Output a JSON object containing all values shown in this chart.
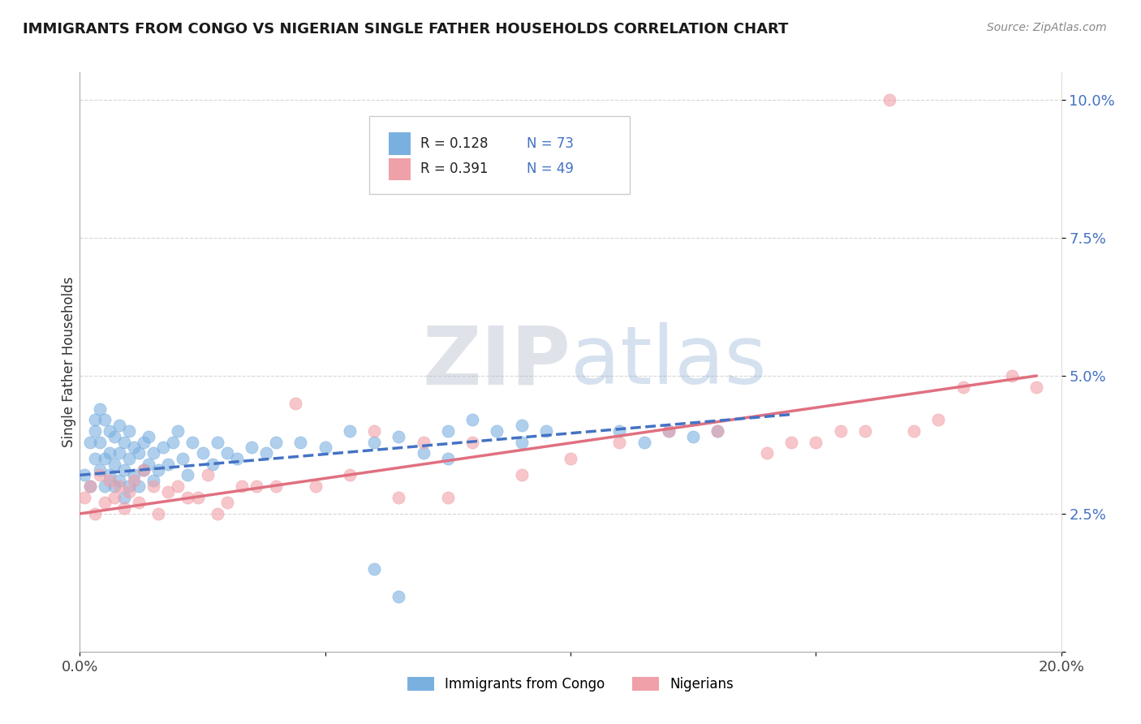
{
  "title": "IMMIGRANTS FROM CONGO VS NIGERIAN SINGLE FATHER HOUSEHOLDS CORRELATION CHART",
  "source": "Source: ZipAtlas.com",
  "ylabel": "Single Father Households",
  "xlim": [
    0.0,
    0.2
  ],
  "ylim": [
    0.0,
    0.105
  ],
  "xticks": [
    0.0,
    0.05,
    0.1,
    0.15,
    0.2
  ],
  "xticklabels": [
    "0.0%",
    "",
    "",
    "",
    "20.0%"
  ],
  "yticks": [
    0.0,
    0.025,
    0.05,
    0.075,
    0.1
  ],
  "yticklabels": [
    "",
    "2.5%",
    "5.0%",
    "7.5%",
    "10.0%"
  ],
  "legend_labels": [
    "Immigrants from Congo",
    "Nigerians"
  ],
  "blue_color": "#7ab0e0",
  "pink_color": "#f0a0a8",
  "blue_line_color": "#4472c4",
  "pink_line_color": "#e07080",
  "watermark_zip": "ZIP",
  "watermark_atlas": "atlas",
  "background_color": "#ffffff",
  "congo_scatter_x": [
    0.001,
    0.002,
    0.002,
    0.003,
    0.003,
    0.003,
    0.004,
    0.004,
    0.004,
    0.005,
    0.005,
    0.005,
    0.006,
    0.006,
    0.006,
    0.007,
    0.007,
    0.007,
    0.008,
    0.008,
    0.008,
    0.009,
    0.009,
    0.009,
    0.01,
    0.01,
    0.01,
    0.011,
    0.011,
    0.012,
    0.012,
    0.013,
    0.013,
    0.014,
    0.014,
    0.015,
    0.015,
    0.016,
    0.017,
    0.018,
    0.019,
    0.02,
    0.021,
    0.022,
    0.023,
    0.025,
    0.027,
    0.028,
    0.03,
    0.032,
    0.035,
    0.038,
    0.04,
    0.045,
    0.05,
    0.055,
    0.06,
    0.065,
    0.07,
    0.075,
    0.08,
    0.085,
    0.09,
    0.095,
    0.06,
    0.065,
    0.075,
    0.09,
    0.11,
    0.115,
    0.12,
    0.125,
    0.13
  ],
  "congo_scatter_y": [
    0.032,
    0.03,
    0.038,
    0.035,
    0.04,
    0.042,
    0.033,
    0.038,
    0.044,
    0.03,
    0.035,
    0.042,
    0.032,
    0.036,
    0.04,
    0.03,
    0.034,
    0.039,
    0.031,
    0.036,
    0.041,
    0.028,
    0.033,
    0.038,
    0.03,
    0.035,
    0.04,
    0.032,
    0.037,
    0.03,
    0.036,
    0.033,
    0.038,
    0.034,
    0.039,
    0.031,
    0.036,
    0.033,
    0.037,
    0.034,
    0.038,
    0.04,
    0.035,
    0.032,
    0.038,
    0.036,
    0.034,
    0.038,
    0.036,
    0.035,
    0.037,
    0.036,
    0.038,
    0.038,
    0.037,
    0.04,
    0.038,
    0.039,
    0.036,
    0.04,
    0.042,
    0.04,
    0.041,
    0.04,
    0.015,
    0.01,
    0.035,
    0.038,
    0.04,
    0.038,
    0.04,
    0.039,
    0.04
  ],
  "nigerian_scatter_x": [
    0.001,
    0.002,
    0.003,
    0.004,
    0.005,
    0.006,
    0.007,
    0.008,
    0.009,
    0.01,
    0.011,
    0.012,
    0.013,
    0.015,
    0.016,
    0.018,
    0.02,
    0.022,
    0.024,
    0.026,
    0.028,
    0.03,
    0.033,
    0.036,
    0.04,
    0.044,
    0.048,
    0.055,
    0.06,
    0.065,
    0.07,
    0.075,
    0.08,
    0.09,
    0.1,
    0.11,
    0.12,
    0.13,
    0.14,
    0.145,
    0.15,
    0.155,
    0.16,
    0.165,
    0.17,
    0.175,
    0.18,
    0.19,
    0.195
  ],
  "nigerian_scatter_y": [
    0.028,
    0.03,
    0.025,
    0.032,
    0.027,
    0.031,
    0.028,
    0.03,
    0.026,
    0.029,
    0.031,
    0.027,
    0.033,
    0.03,
    0.025,
    0.029,
    0.03,
    0.028,
    0.028,
    0.032,
    0.025,
    0.027,
    0.03,
    0.03,
    0.03,
    0.045,
    0.03,
    0.032,
    0.04,
    0.028,
    0.038,
    0.028,
    0.038,
    0.032,
    0.035,
    0.038,
    0.04,
    0.04,
    0.036,
    0.038,
    0.038,
    0.04,
    0.04,
    0.1,
    0.04,
    0.042,
    0.048,
    0.05,
    0.048
  ],
  "congo_line_x0": 0.0,
  "congo_line_y0": 0.032,
  "congo_line_x1": 0.145,
  "congo_line_y1": 0.043,
  "nigerian_line_x0": 0.0,
  "nigerian_line_y0": 0.025,
  "nigerian_line_x1": 0.195,
  "nigerian_line_y1": 0.05
}
